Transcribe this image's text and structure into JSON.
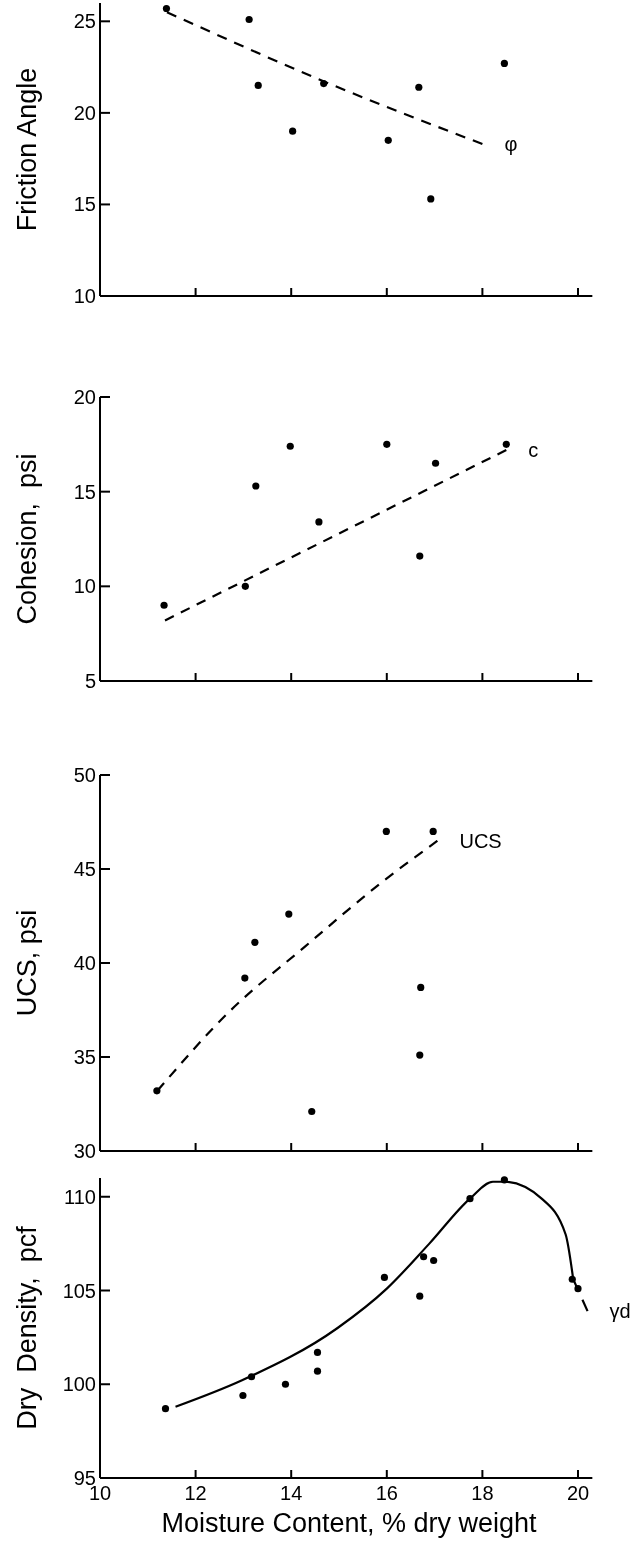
{
  "chart_data": [
    {
      "type": "scatter",
      "ylabel": "Friction Angle",
      "xlim": [
        10,
        20.3
      ],
      "xticks": [
        10,
        12,
        14,
        16,
        18,
        20
      ],
      "ylim": [
        10,
        26
      ],
      "yticks": [
        10,
        15,
        20,
        25
      ],
      "tick_labels": "y",
      "series": [
        {
          "color": "#000000",
          "marker": "circle",
          "x": [
            11.39,
            13.12,
            13.31,
            14.03,
            14.68,
            16.03,
            16.67,
            16.92,
            18.46
          ],
          "values": [
            25.7,
            25.1,
            21.5,
            19.0,
            21.6,
            18.5,
            21.4,
            15.3,
            22.7
          ]
        },
        {
          "type": "line",
          "name": "φ",
          "color": "#000000",
          "marker": "none",
          "line_style": "dashed",
          "x": [
            11.4,
            14.7,
            18.0
          ],
          "values": [
            25.5,
            21.7,
            18.3
          ]
        }
      ]
    },
    {
      "type": "scatter",
      "ylabel": "Cohesion,  psi",
      "xlim": [
        10,
        20.3
      ],
      "xticks": [
        10,
        12,
        14,
        16,
        18,
        20
      ],
      "ylim": [
        5,
        20
      ],
      "yticks": [
        5,
        10,
        15,
        20
      ],
      "tick_labels": "y",
      "series": [
        {
          "color": "#000000",
          "marker": "circle",
          "x": [
            11.34,
            13.04,
            13.26,
            13.98,
            14.58,
            16.0,
            16.69,
            17.02,
            18.5
          ],
          "values": [
            9.0,
            10.0,
            15.3,
            17.4,
            13.4,
            17.5,
            11.6,
            16.5,
            17.5
          ]
        },
        {
          "type": "line",
          "name": "c",
          "color": "#000000",
          "marker": "none",
          "line_style": "dashed",
          "x": [
            11.36,
            18.5
          ],
          "values": [
            8.2,
            17.2
          ]
        }
      ]
    },
    {
      "type": "scatter",
      "ylabel": "UCS, psi",
      "xlim": [
        10,
        20.3
      ],
      "xticks": [
        10,
        12,
        14,
        16,
        18,
        20
      ],
      "ylim": [
        30,
        50
      ],
      "yticks": [
        30,
        35,
        40,
        45,
        50
      ],
      "tick_labels": "y",
      "series": [
        {
          "color": "#000000",
          "marker": "circle",
          "x": [
            11.19,
            13.03,
            13.24,
            13.95,
            14.43,
            15.99,
            16.69,
            16.71,
            16.97
          ],
          "values": [
            33.2,
            39.2,
            41.1,
            42.6,
            32.1,
            47.0,
            35.1,
            38.7,
            47.0
          ]
        },
        {
          "type": "line",
          "name": "UCS",
          "color": "#000000",
          "marker": "none",
          "line_style": "dashed",
          "x": [
            11.2,
            12.7,
            14.3,
            15.9,
            17.06
          ],
          "values": [
            33.2,
            37.4,
            40.9,
            44.3,
            46.5
          ]
        }
      ]
    },
    {
      "type": "scatter",
      "xlabel": "Moisture Content, % dry weight",
      "ylabel": "Dry  Density,  pcf",
      "xlim": [
        10,
        20.3
      ],
      "xticks": [
        10,
        12,
        14,
        16,
        18,
        20
      ],
      "ylim": [
        95,
        111
      ],
      "yticks": [
        95,
        100,
        105,
        110
      ],
      "series": [
        {
          "color": "#000000",
          "marker": "circle",
          "x": [
            11.37,
            12.99,
            13.17,
            13.88,
            14.55,
            14.55,
            15.95,
            16.69,
            16.77,
            16.98,
            17.74,
            18.46,
            19.88,
            20.0
          ],
          "values": [
            98.7,
            99.4,
            100.4,
            100.0,
            101.7,
            100.7,
            105.7,
            104.7,
            106.8,
            106.6,
            109.9,
            110.9,
            105.6,
            105.1
          ]
        },
        {
          "type": "line",
          "color": "#000000",
          "marker": "none",
          "line_style": "solid",
          "x": [
            11.58,
            12.96,
            14.97,
            16.0,
            16.89,
            17.74,
            18.22,
            18.46,
            19.24,
            19.74,
            19.9
          ],
          "values": [
            98.8,
            100.2,
            103.0,
            105.1,
            107.5,
            109.9,
            110.8,
            110.8,
            109.9,
            108.0,
            105.6
          ]
        },
        {
          "type": "line",
          "name": "γd",
          "color": "#000000",
          "marker": "none",
          "line_style": "dashed",
          "x": [
            19.9,
            20.2
          ],
          "values": [
            105.6,
            103.9
          ]
        }
      ]
    }
  ]
}
